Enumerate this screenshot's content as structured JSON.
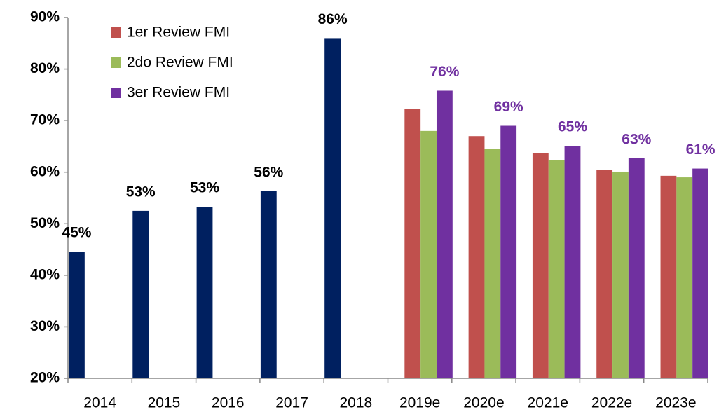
{
  "chart_data": {
    "type": "bar",
    "categories": [
      "2014",
      "2015",
      "2016",
      "2017",
      "2018",
      "2019e",
      "2020e",
      "2021e",
      "2022e",
      "2023e"
    ],
    "series": [
      {
        "color": "#002060",
        "values": [
          44.6,
          52.5,
          53.3,
          56.3,
          86,
          null,
          null,
          null,
          null,
          null
        ],
        "value_labels": [
          "45%",
          "53%",
          "53%",
          "56%",
          "86%",
          null,
          null,
          null,
          null,
          null
        ]
      },
      {
        "name": "1er Review FMI",
        "color": "#c0504d",
        "values": [
          null,
          null,
          null,
          null,
          null,
          72.2,
          67,
          63.7,
          60.5,
          59.3
        ]
      },
      {
        "name": "2do Review FMI",
        "color": "#9bbb59",
        "values": [
          null,
          null,
          null,
          null,
          null,
          68,
          64.5,
          62.3,
          60.1,
          59
        ]
      },
      {
        "name": "3er Review FMI",
        "color": "#7030a0",
        "values": [
          null,
          null,
          null,
          null,
          null,
          75.8,
          69,
          65.1,
          62.7,
          60.7
        ],
        "value_labels": [
          null,
          null,
          null,
          null,
          null,
          "76%",
          "69%",
          "65%",
          "63%",
          "61%"
        ]
      }
    ],
    "ylim": [
      20,
      90
    ],
    "yticks": [
      {
        "value": 20,
        "label": "20%"
      },
      {
        "value": 30,
        "label": "30%"
      },
      {
        "value": 40,
        "label": "40%"
      },
      {
        "value": 50,
        "label": "50%"
      },
      {
        "value": 60,
        "label": "60%"
      },
      {
        "value": 70,
        "label": "70%"
      },
      {
        "value": 80,
        "label": "80%"
      },
      {
        "value": 90,
        "label": "90%"
      }
    ],
    "legend": "upper-left"
  }
}
